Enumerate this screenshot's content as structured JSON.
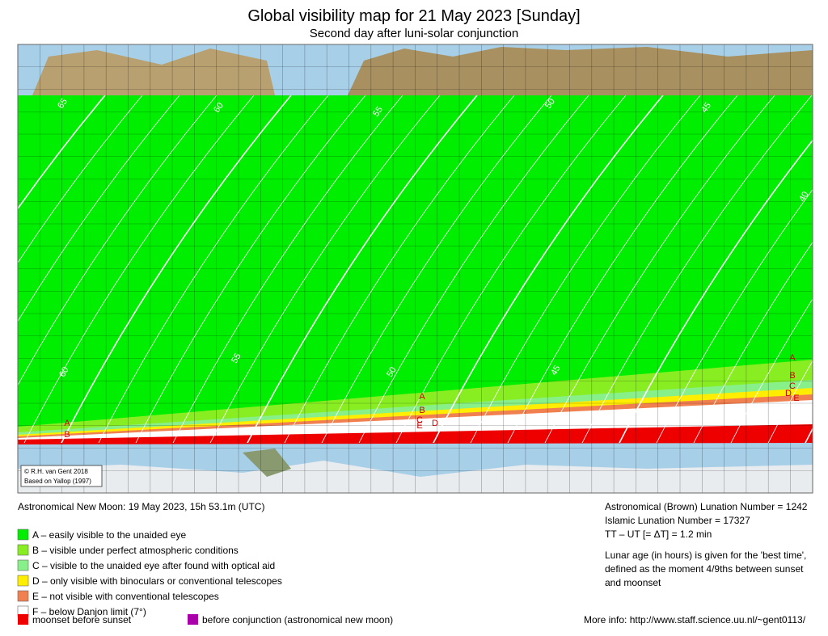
{
  "header": {
    "title": "Global visibility map for 21 May 2023 [Sunday]",
    "subtitle": "Second day after luni-solar conjunction"
  },
  "map": {
    "credits": [
      "© R.H. van Gent 2018",
      "Based on Yallop (1997)"
    ],
    "contour_labels": [
      "65",
      "60",
      "55",
      "50",
      "45",
      "40",
      "60",
      "55",
      "50",
      "45"
    ],
    "zone_labels": [
      "A",
      "B",
      "A",
      "B",
      "C",
      "E",
      "D",
      "A",
      "B",
      "C",
      "D",
      "E"
    ]
  },
  "info": {
    "new_moon": "Astronomical New Moon: 19 May 2023, 15h 53.1m (UTC)",
    "lunation": "Astronomical (Brown) Lunation Number = 1242",
    "islamic": "Islamic Lunation Number = 17327",
    "delta_t": "TT – UT [= ΔT] = 1.2 min",
    "note": [
      "Lunar age (in hours) is given for the 'best time',",
      "defined as the moment 4/9ths between sunset",
      "and moonset"
    ],
    "more_info": "More info: http://www.staff.science.uu.nl/~gent0113/"
  },
  "legend": [
    {
      "label": "A – easily visible to the unaided eye",
      "color": "#00ee00"
    },
    {
      "label": "B – visible under perfect atmospheric conditions",
      "color": "#88ee22"
    },
    {
      "label": "C – visible to the unaided eye after found with optical aid",
      "color": "#88f088"
    },
    {
      "label": "D – only visible with binoculars or conventional telescopes",
      "color": "#ffee00"
    },
    {
      "label": "E – not visible with conventional telescopes",
      "color": "#f08050"
    },
    {
      "label": "F – below Danjon limit (7°)",
      "color": "#ffffff"
    }
  ],
  "legend_extra": [
    {
      "label": "moonset before sunset",
      "color": "#ee0000"
    },
    {
      "label": "before conjunction (astronomical new moon)",
      "color": "#aa00aa"
    }
  ]
}
